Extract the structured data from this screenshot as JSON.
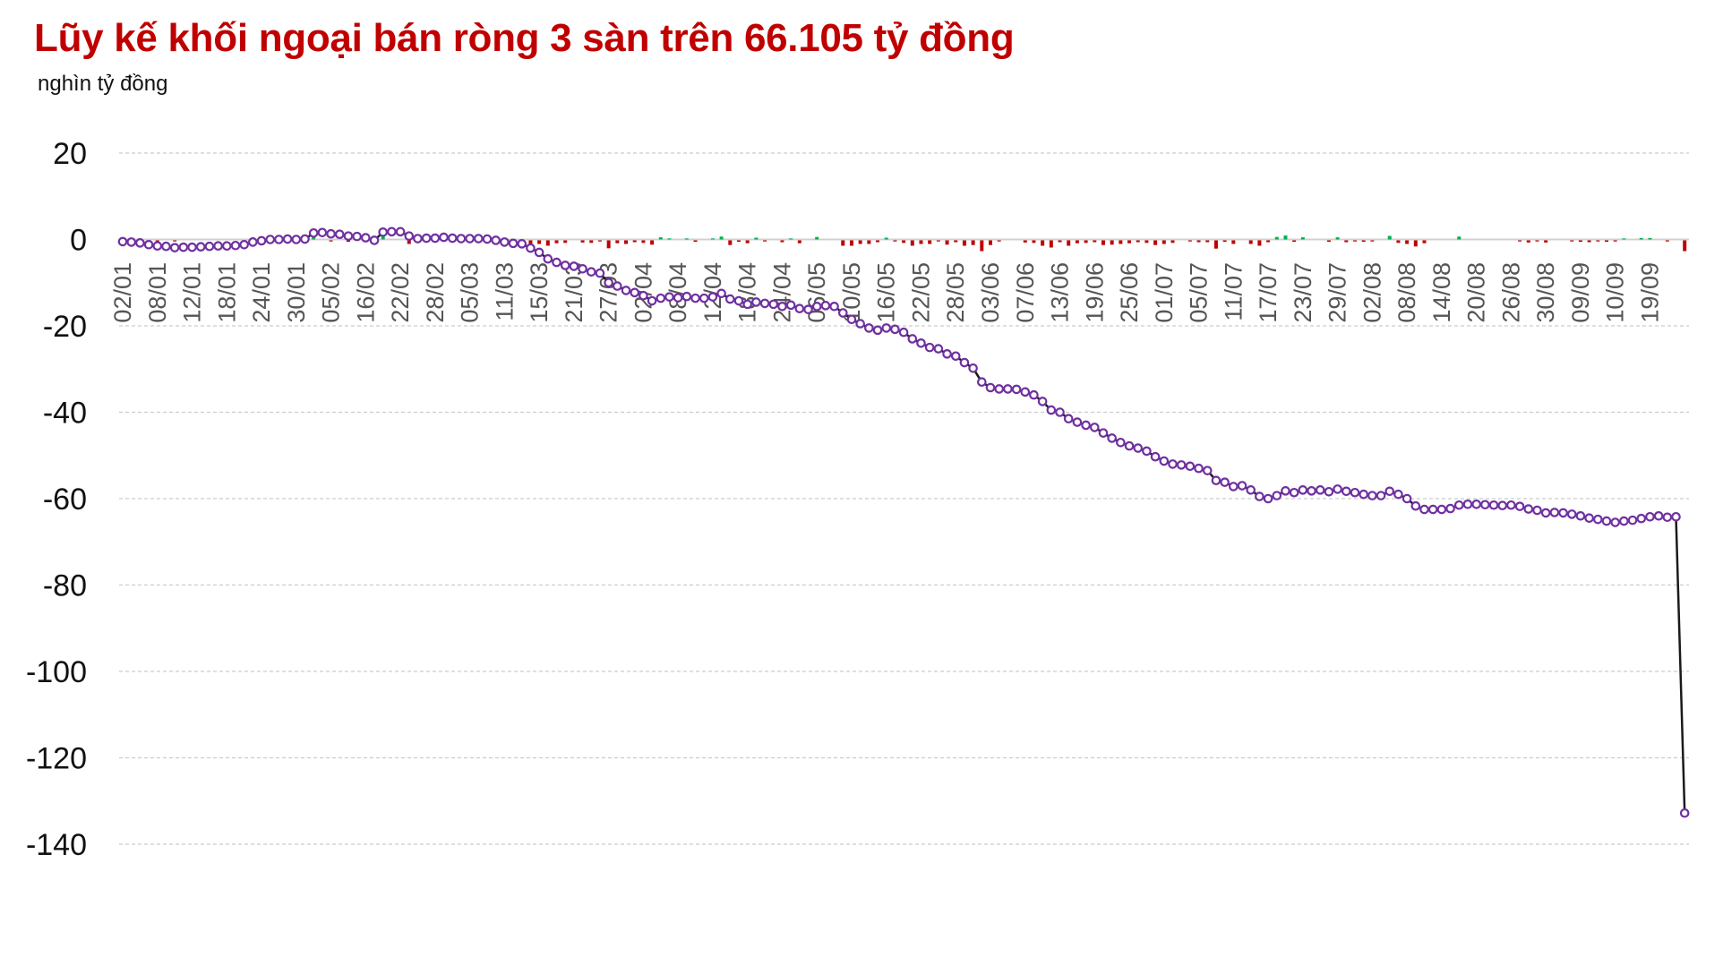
{
  "chart_data": {
    "type": "line",
    "title": "Lũy kế khối ngoại bán ròng 3 sàn trên 66.105 tỷ đồng",
    "ylabel": "nghìn tỷ đồng",
    "xlabel": "",
    "ylim": [
      -140,
      20
    ],
    "yticks": [
      20,
      0,
      -20,
      -40,
      -60,
      -80,
      -100,
      -120,
      -140
    ],
    "grid": true,
    "legend": "none",
    "colors": {
      "title": "#c00000",
      "line": "#1a1a1a",
      "marker": "#7030a0",
      "bar_negative": "#c00000",
      "bar_positive": "#00b050",
      "grid": "#cccccc",
      "tick_label": "#555555"
    },
    "tick_labels": [
      "02/01",
      "08/01",
      "12/01",
      "18/01",
      "24/01",
      "30/01",
      "05/02",
      "16/02",
      "22/02",
      "28/02",
      "05/03",
      "11/03",
      "15/03",
      "21/03",
      "27/03",
      "02/04",
      "08/04",
      "12/04",
      "18/04",
      "24/04",
      "06/05",
      "10/05",
      "16/05",
      "22/05",
      "28/05",
      "03/06",
      "07/06",
      "13/06",
      "19/06",
      "25/06",
      "01/07",
      "05/07",
      "11/07",
      "17/07",
      "23/07",
      "29/07",
      "02/08",
      "08/08",
      "14/08",
      "20/08",
      "26/08",
      "30/08",
      "09/09",
      "10/09",
      "19/09"
    ],
    "series": [
      {
        "values": [
          -0.5,
          -0.6,
          -0.8,
          -1.2,
          -1.5,
          -1.6,
          -1.9,
          -1.8,
          -1.8,
          -1.7,
          -1.6,
          -1.5,
          -1.5,
          -1.4,
          -1.2,
          -0.6,
          -0.3,
          0,
          0,
          0.1,
          0,
          0.1,
          1.5,
          1.6,
          1.3,
          1.2,
          0.8,
          0.7,
          0.4,
          -0.2,
          1.7,
          1.8,
          1.8,
          0.8,
          0.2,
          0.3,
          0.3,
          0.5,
          0.3,
          0.2,
          0.2,
          0.2,
          0.1,
          -0.2,
          -0.6,
          -0.9,
          -1.0,
          -2.0,
          -3,
          -4.5,
          -5.3,
          -6,
          -6.2,
          -6.8,
          -7.5,
          -7.8,
          -10,
          -10.8,
          -11.8,
          -12.3,
          -13,
          -14.2,
          -13.6,
          -13.3,
          -13.5,
          -13.2,
          -13.6,
          -13.6,
          -13.3,
          -12.5,
          -13.8,
          -14.2,
          -15,
          -14.5,
          -14.8,
          -15,
          -15.5,
          -15.2,
          -16,
          -16.2,
          -15.5,
          -15.3,
          -15.5,
          -17,
          -18.5,
          -19.5,
          -20.5,
          -21,
          -20.5,
          -20.8,
          -21.5,
          -23,
          -24,
          -25,
          -25.3,
          -26.5,
          -27,
          -28.5,
          -29.8,
          -33,
          -34.3,
          -34.6,
          -34.6,
          -34.7,
          -35.3,
          -36,
          -37.5,
          -39.5,
          -40,
          -41.5,
          -42.3,
          -43,
          -43.5,
          -44.8,
          -46,
          -47,
          -47.8,
          -48.3,
          -49,
          -50.3,
          -51.3,
          -52,
          -52.2,
          -52.5,
          -53,
          -53.5,
          -55.8,
          -56.2,
          -57.2,
          -57,
          -58,
          -59.5,
          -60,
          -59.3,
          -58.2,
          -58.6,
          -58,
          -58.2,
          -58,
          -58.4,
          -57.8,
          -58.3,
          -58.6,
          -59,
          -59.3,
          -59.3,
          -58.3,
          -59,
          -60,
          -61.7,
          -62.5,
          -62.5,
          -62.5,
          -62.3,
          -61.5,
          -61.3,
          -61.3,
          -61.4,
          -61.5,
          -61.6,
          -61.5,
          -61.8,
          -62.4,
          -62.7,
          -63.3,
          -63.2,
          -63.3,
          -63.6,
          -64,
          -64.5,
          -64.8,
          -65.2,
          -65.5,
          -65.2,
          -65,
          -64.6,
          -64.2,
          -64,
          -64.3,
          -64.2,
          -132.8
        ]
      }
    ]
  }
}
